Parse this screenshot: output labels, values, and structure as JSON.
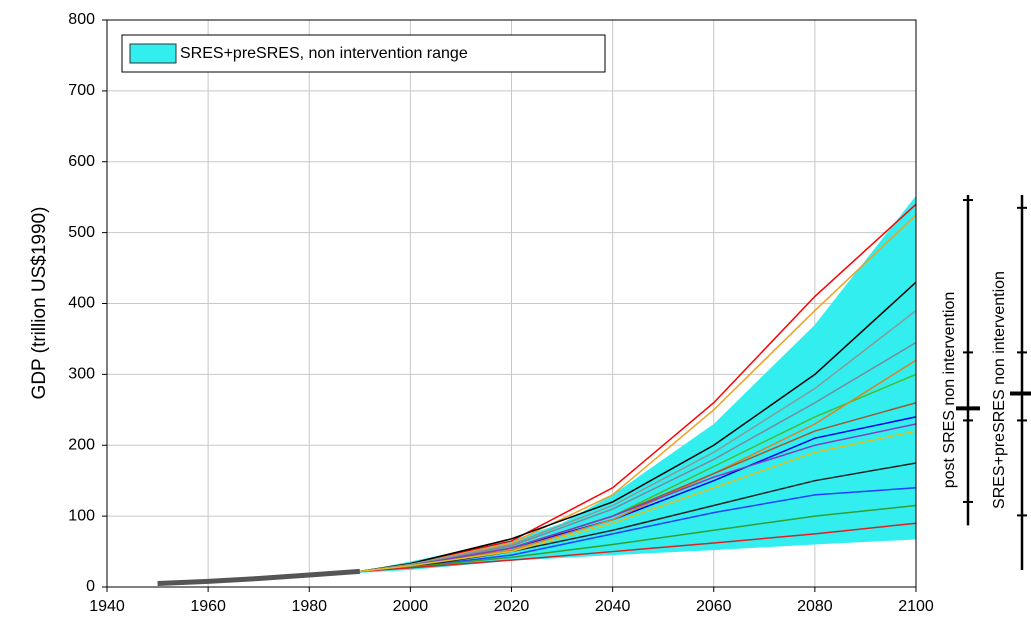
{
  "chart_data": {
    "type": "line",
    "y_label": "GDP (trillion US$1990)",
    "xlim": [
      1940,
      2100
    ],
    "ylim": [
      0,
      800
    ],
    "xticks": [
      1940,
      1960,
      1980,
      2000,
      2020,
      2040,
      2060,
      2080,
      2100
    ],
    "yticks": [
      0,
      100,
      200,
      300,
      400,
      500,
      600,
      700,
      800
    ],
    "grid": true,
    "legend_position": "upper left",
    "band": {
      "name": "SRES+preSRES, non intervention range",
      "color": "#33eeee",
      "x": [
        1990,
        2000,
        2020,
        2030,
        2040,
        2060,
        2080,
        2100
      ],
      "upper": [
        22,
        36,
        66,
        90,
        130,
        230,
        370,
        552
      ],
      "lower": [
        20,
        24,
        37,
        41,
        45,
        52,
        60,
        67
      ]
    },
    "history": {
      "color": "#555555",
      "x": [
        1950,
        1960,
        1970,
        1980,
        1990
      ],
      "values": [
        5,
        8,
        12,
        17,
        22
      ]
    },
    "x": [
      1990,
      2000,
      2020,
      2040,
      2060,
      2080,
      2100
    ],
    "series": [
      {
        "color": "#ff0000",
        "values": [
          22,
          33,
          65,
          140,
          260,
          410,
          540
        ]
      },
      {
        "color": "#f0a020",
        "values": [
          22,
          32,
          62,
          130,
          250,
          390,
          525
        ]
      },
      {
        "color": "#000000",
        "values": [
          22,
          33,
          68,
          120,
          200,
          300,
          430
        ]
      },
      {
        "color": "#8a9a9a",
        "values": [
          22,
          32,
          60,
          115,
          190,
          280,
          390
        ]
      },
      {
        "color": "#7a8a9a",
        "values": [
          22,
          30,
          58,
          110,
          180,
          260,
          345
        ]
      },
      {
        "color": "#0000ee",
        "values": [
          22,
          30,
          55,
          95,
          150,
          210,
          240
        ]
      },
      {
        "color": "#2040ff",
        "values": [
          22,
          28,
          45,
          75,
          105,
          130,
          140
        ]
      },
      {
        "color": "#40c030",
        "values": [
          22,
          30,
          55,
          100,
          170,
          240,
          300
        ]
      },
      {
        "color": "#e08020",
        "values": [
          22,
          30,
          52,
          95,
          160,
          230,
          320
        ]
      },
      {
        "color": "#a05a30",
        "values": [
          22,
          30,
          55,
          100,
          160,
          220,
          260
        ]
      },
      {
        "color": "#202020",
        "values": [
          22,
          28,
          50,
          80,
          115,
          150,
          175
        ]
      },
      {
        "color": "#30a030",
        "values": [
          22,
          28,
          42,
          60,
          80,
          100,
          115
        ]
      },
      {
        "color": "#dd2020",
        "values": [
          22,
          27,
          38,
          50,
          62,
          75,
          90
        ]
      },
      {
        "color": "#8040c0",
        "values": [
          22,
          30,
          55,
          100,
          155,
          200,
          230
        ]
      },
      {
        "color": "#e0c020",
        "values": [
          22,
          30,
          50,
          90,
          140,
          190,
          220
        ]
      }
    ],
    "range_bars": [
      {
        "label": "post SRES non intervention",
        "min": 87,
        "max": 553,
        "ticks": [
          546,
          331,
          235,
          120
        ],
        "median": 252
      },
      {
        "label": "SRES+preSRES non intervention",
        "min": 24,
        "max": 553,
        "ticks": [
          535,
          331,
          235,
          101
        ],
        "median": 273
      }
    ]
  }
}
